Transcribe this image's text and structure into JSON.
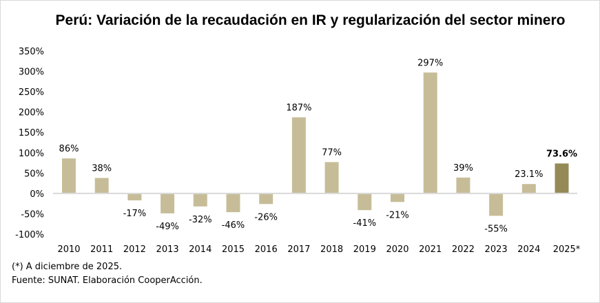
{
  "chart_data": {
    "type": "bar",
    "title": "Perú: Variación de la recaudación en IR y regularización del sector minero",
    "xlabel": "",
    "ylabel": "",
    "ylim": [
      -100,
      350
    ],
    "yticks": [
      350,
      300,
      250,
      200,
      150,
      100,
      50,
      0,
      -50,
      -100
    ],
    "ytick_labels": [
      "350%",
      "300%",
      "250%",
      "200%",
      "150%",
      "100%",
      "50%",
      "0%",
      "-50%",
      "-100%"
    ],
    "grid": false,
    "legend": "none",
    "categories": [
      "2010",
      "2011",
      "2012",
      "2013",
      "2014",
      "2015",
      "2016",
      "2017",
      "2018",
      "2019",
      "2020",
      "2021",
      "2022",
      "2023",
      "2024",
      "2025*"
    ],
    "values": [
      86,
      38,
      -17,
      -49,
      -32,
      -46,
      -26,
      187,
      77,
      -41,
      -21,
      297,
      39,
      -55,
      23.1,
      73.6
    ],
    "data_labels": [
      "86%",
      "38%",
      "-17%",
      "-49%",
      "-32%",
      "-46%",
      "-26%",
      "187%",
      "77%",
      "-41%",
      "-21%",
      "297%",
      "39%",
      "-55%",
      "23.1%",
      "73.6%"
    ],
    "highlight_index": 15,
    "colors": {
      "bar": "#c6bd98",
      "highlight": "#958a56",
      "axis": "#d9d9d9"
    }
  },
  "notes": {
    "footnote": "(*) A diciembre   de 2025.",
    "source": "Fuente: SUNAT. Elaboración CooperAcción."
  }
}
